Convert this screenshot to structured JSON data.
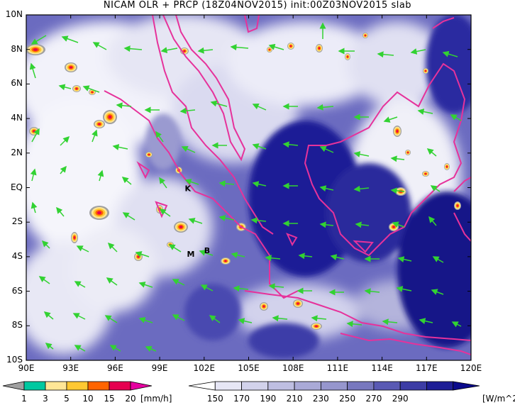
{
  "title": "NICAM OLR + PRCP (18Z04NOV2015) init:00Z03NOV2015 slab",
  "lat_labels": [
    "10N",
    "8N",
    "6N",
    "4N",
    "2N",
    "EQ",
    "2S",
    "4S",
    "6S",
    "8S",
    "10S"
  ],
  "lon_labels": [
    "90E",
    "93E",
    "96E",
    "99E",
    "102E",
    "105E",
    "108E",
    "111E",
    "114E",
    "117E",
    "120E"
  ],
  "map_labels": [
    {
      "text": "K",
      "lon": 100.9,
      "lat": -0.2
    },
    {
      "text": "M",
      "lon": 101.1,
      "lat": -4.0
    },
    {
      "text": "B",
      "lon": 102.2,
      "lat": -3.8
    }
  ],
  "prcp_colorbar": {
    "unit": "[mm/h]",
    "ticks": [
      "1",
      "3",
      "5",
      "10",
      "15",
      "20"
    ],
    "colors": [
      "#a0a0a0",
      "#00c8a0",
      "#ffe696",
      "#ffc832",
      "#ff6400",
      "#e60050",
      "#e600a0"
    ]
  },
  "olr_colorbar": {
    "unit": "[W/m^2]",
    "ticks": [
      "150",
      "170",
      "190",
      "210",
      "230",
      "250",
      "270",
      "290"
    ],
    "colors": [
      "#ffffff",
      "#e6e6f5",
      "#d2d2eb",
      "#bebee1",
      "#aaaad7",
      "#9696cd",
      "#7878be",
      "#5a5ab4",
      "#3c3ca5",
      "#1e1e96",
      "#0a0a8c"
    ]
  },
  "colors": {
    "frame": "#000000",
    "coast": "#e6329b",
    "wind": "#32d232",
    "deep_cloud_bg": "#1e1e96"
  }
}
